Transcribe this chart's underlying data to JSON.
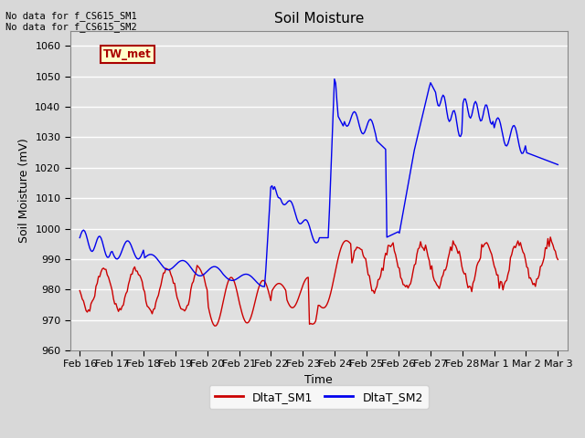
{
  "title": "Soil Moisture",
  "ylabel": "Soil Moisture (mV)",
  "xlabel": "Time",
  "ylim": [
    960,
    1065
  ],
  "yticks": [
    960,
    970,
    980,
    990,
    1000,
    1010,
    1020,
    1030,
    1040,
    1050,
    1060
  ],
  "fig_bg_color": "#d8d8d8",
  "plot_bg_color": "#e0e0e0",
  "grid_color": "#ffffff",
  "annotation_text": "No data for f_CS615_SM1\nNo data for f_CS615_SM2",
  "legend_box_text": "TW_met",
  "legend_box_color": "#ffffcc",
  "legend_box_border": "#aa0000",
  "sm1_color": "#cc0000",
  "sm2_color": "#0000ee",
  "x_tick_labels": [
    "Feb 16",
    "Feb 17",
    "Feb 18",
    "Feb 19",
    "Feb 20",
    "Feb 21",
    "Feb 22",
    "Feb 23",
    "Feb 24",
    "Feb 25",
    "Feb 26",
    "Feb 27",
    "Feb 28",
    "Mar 1",
    "Mar 2",
    "Mar 3"
  ],
  "title_fontsize": 11,
  "axis_label_fontsize": 9,
  "tick_fontsize": 8
}
